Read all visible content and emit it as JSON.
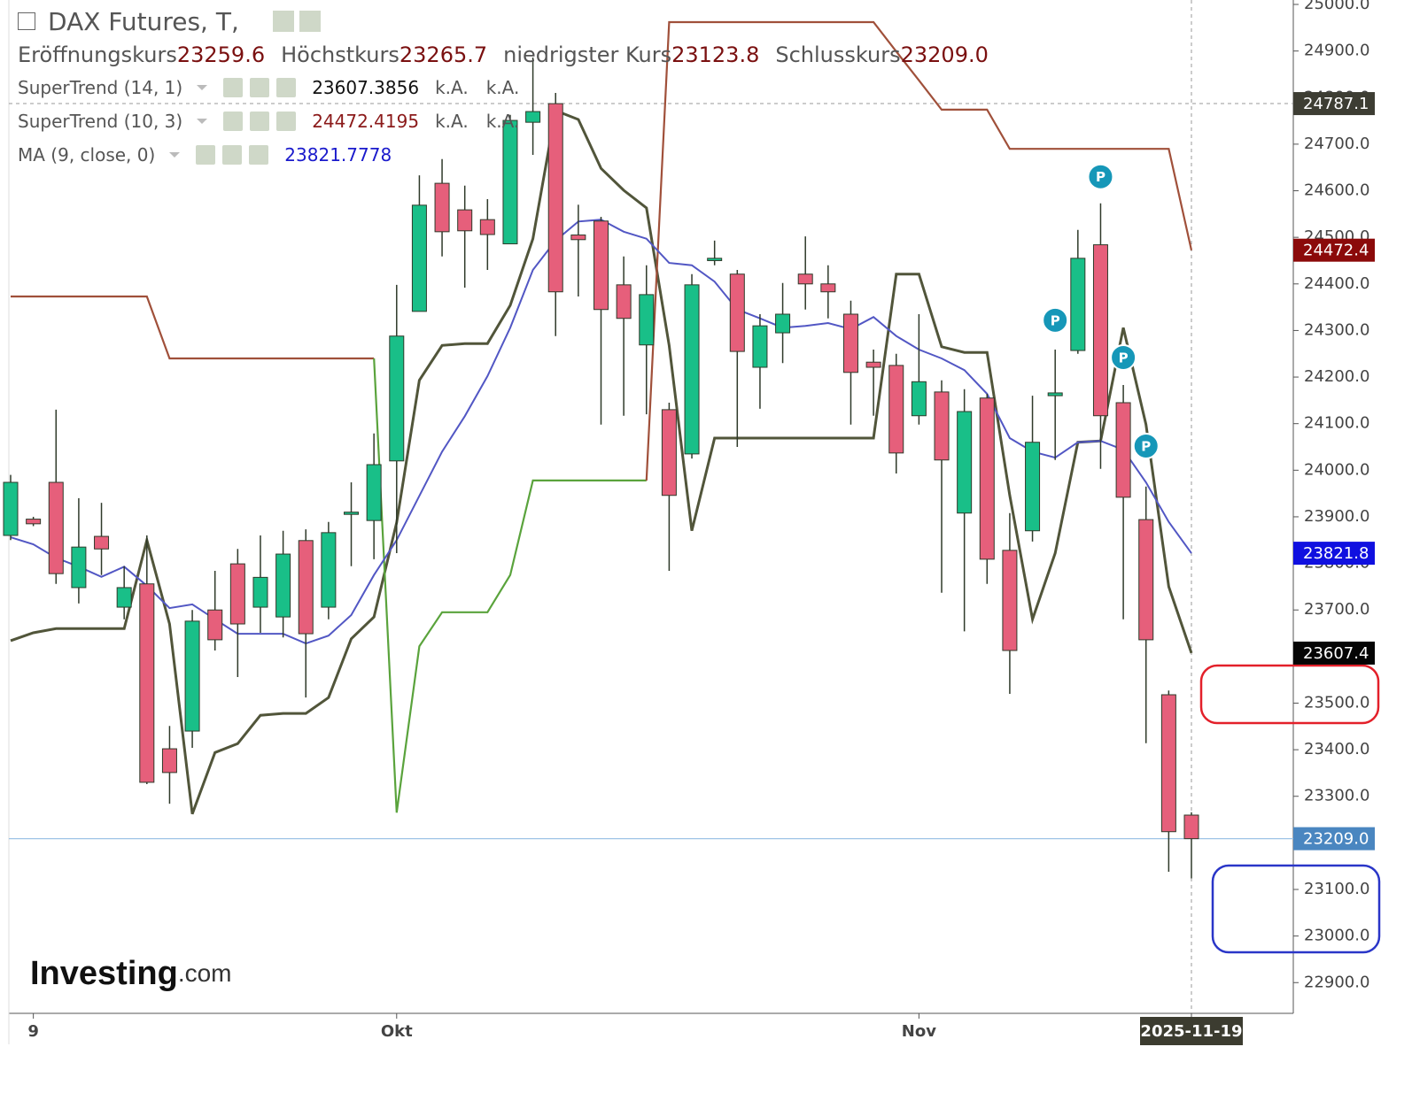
{
  "chart_data": {
    "type": "candlestick",
    "title": "DAX Futures, T,",
    "ohlc_legend": [
      {
        "label": "Eröffnungskurs",
        "value": "23259.6"
      },
      {
        "label": "Höchstkurs",
        "value": "23265.7"
      },
      {
        "label": "niedrigster Kurs",
        "value": "23123.8"
      },
      {
        "label": "Schlusskurs",
        "value": "23209.0"
      }
    ],
    "categories": [
      null,
      "9",
      null,
      null,
      null,
      null,
      null,
      null,
      null,
      null,
      null,
      null,
      null,
      null,
      null,
      null,
      null,
      "Okt",
      null,
      null,
      null,
      null,
      null,
      null,
      null,
      null,
      null,
      null,
      null,
      null,
      null,
      null,
      null,
      null,
      null,
      null,
      null,
      null,
      null,
      null,
      "Nov",
      null,
      null,
      null,
      null,
      null,
      null,
      null,
      null,
      null,
      null,
      null,
      "2025-11-19"
    ],
    "open": [
      23860,
      23895,
      23974,
      23748,
      23858,
      23706,
      23756,
      23402,
      23440,
      23700,
      23799,
      23706,
      23685,
      23849,
      23706,
      23907,
      23892,
      24020,
      24341,
      24616,
      24559,
      24538,
      24486,
      24747,
      24787,
      24505,
      24535,
      24398,
      24269,
      24130,
      24035,
      24450,
      24421,
      24221,
      24295,
      24421,
      24400,
      24335,
      24232,
      24225,
      24117,
      24168,
      23908,
      24155,
      23828,
      23870,
      24160,
      24257,
      24484,
      24145,
      23894,
      23518,
      23259.6
    ],
    "high": [
      23990,
      23900,
      24130,
      23940,
      23930,
      23794,
      23860,
      23451,
      23700,
      23784,
      23831,
      23860,
      23870,
      23873,
      23889,
      23974,
      24079,
      24398,
      24633,
      24668,
      24611,
      24582,
      24763,
      24886,
      24810,
      24570,
      24544,
      24459,
      24440,
      24145,
      24421,
      24493,
      24430,
      24335,
      24402,
      24502,
      24440,
      24364,
      24259,
      24250,
      24335,
      24193,
      24174,
      24164,
      23908,
      24160,
      24259,
      24516,
      24573,
      24183,
      23965,
      23527,
      23265.7
    ],
    "low": [
      23850,
      23880,
      23756,
      23714,
      23775,
      23680,
      23326,
      23284,
      23404,
      23613,
      23556,
      23651,
      23641,
      23512,
      23680,
      23794,
      23809,
      23822,
      24341,
      24459,
      24392,
      24430,
      24486,
      24677,
      24288,
      24373,
      24098,
      24117,
      24120,
      23784,
      24025,
      24440,
      24050,
      24132,
      24230,
      24345,
      24326,
      24098,
      24117,
      23993,
      24098,
      23737,
      23654,
      23756,
      23520,
      23847,
      24022,
      24250,
      24003,
      23680,
      23414,
      23138,
      23123.8
    ],
    "close": [
      23974,
      23885,
      23778,
      23835,
      23831,
      23748,
      23330,
      23351,
      23676,
      23636,
      23670,
      23770,
      23820,
      23649,
      23866,
      23910,
      24012,
      24288,
      24569,
      24512,
      24514,
      24506,
      24751,
      24770,
      24383,
      24495,
      24345,
      24326,
      24377,
      23946,
      24398,
      24455,
      24255,
      24310,
      24335,
      24400,
      24383,
      24210,
      24221,
      24037,
      24190,
      24022,
      24126,
      23809,
      23613,
      24060,
      24166,
      24455,
      24117,
      23942,
      23636,
      23224,
      23209
    ],
    "up_color": "#19bf88",
    "down_color": "#e65f7b",
    "series": [
      {
        "name": "SuperTrend (14, 1)",
        "color": "#51553a",
        "legend_value": "23607.3856",
        "legend_value_color": "#111111",
        "legend_extra": [
          "k.A.",
          "k.A."
        ],
        "values": [
          23634,
          23651,
          23660,
          23660,
          23660,
          23660,
          23850,
          23670,
          23262,
          23394,
          23413,
          23474,
          23478,
          23478,
          23512,
          23638,
          23685,
          23888,
          24193,
          24268,
          24272,
          24272,
          24354,
          24497,
          24772,
          24753,
          24648,
          24601,
          24563,
          24268,
          23870,
          24069,
          24069,
          24069,
          24069,
          24069,
          24069,
          24069,
          24069,
          24421,
          24421,
          24265,
          24253,
          24253,
          23946,
          23680,
          23822,
          24060,
          24063,
          24306,
          24098,
          23750,
          23607.4
        ]
      },
      {
        "name": "SuperTrend (10, 3)",
        "legend_value": "24472.4195",
        "legend_value_color": "#8b1a1a",
        "legend_extra": [
          "k.A.",
          "k.A."
        ],
        "values": [
          24373,
          24373,
          24373,
          24373,
          24373,
          24373,
          24373,
          24240,
          24240,
          24240,
          24240,
          24240,
          24240,
          24240,
          24240,
          24240,
          24240,
          23265,
          23622,
          23695,
          23695,
          23695,
          23775,
          23978,
          23978,
          23978,
          23978,
          23978,
          23978,
          24962,
          24962,
          24962,
          24962,
          24962,
          24962,
          24962,
          24962,
          24962,
          24962,
          24899,
          24837,
          24774,
          24774,
          24774,
          24690,
          24690,
          24690,
          24690,
          24690,
          24690,
          24690,
          24690,
          24472.4
        ],
        "colors": [
          "#a0503a",
          "#a0503a",
          "#a0503a",
          "#a0503a",
          "#a0503a",
          "#a0503a",
          "#a0503a",
          "#a0503a",
          "#a0503a",
          "#a0503a",
          "#a0503a",
          "#a0503a",
          "#a0503a",
          "#a0503a",
          "#a0503a",
          "#a0503a",
          "#a0503a",
          "#5aa33c",
          "#5aa33c",
          "#5aa33c",
          "#5aa33c",
          "#5aa33c",
          "#5aa33c",
          "#5aa33c",
          "#5aa33c",
          "#5aa33c",
          "#5aa33c",
          "#5aa33c",
          "#5aa33c",
          "#a0503a",
          "#a0503a",
          "#a0503a",
          "#a0503a",
          "#a0503a",
          "#a0503a",
          "#a0503a",
          "#a0503a",
          "#a0503a",
          "#a0503a",
          "#a0503a",
          "#a0503a",
          "#a0503a",
          "#a0503a",
          "#a0503a",
          "#a0503a",
          "#a0503a",
          "#a0503a",
          "#a0503a",
          "#a0503a",
          "#a0503a",
          "#a0503a",
          "#a0503a",
          "#a0503a"
        ]
      },
      {
        "name": "MA (9, close, 0)",
        "color": "#5257c4",
        "legend_value": "23821.7778",
        "legend_value_color": "#1a1acc",
        "values": [
          23856,
          23841,
          23812,
          23793,
          23771,
          23793,
          23752,
          23704,
          23712,
          23680,
          23649,
          23649,
          23649,
          23628,
          23645,
          23689,
          23775,
          23850,
          23945,
          24040,
          24116,
          24202,
          24306,
          24430,
          24493,
          24534,
          24538,
          24512,
          24497,
          24445,
          24440,
          24405,
          24345,
          24326,
          24306,
          24310,
          24316,
          24303,
          24329,
          24288,
          24259,
          24240,
          24215,
          24164,
          24069,
          24040,
          24027,
          24060,
          24063,
          24044,
          23974,
          23889,
          23821.8
        ]
      }
    ],
    "pivot_markers": [
      {
        "label": "P",
        "index": 48,
        "value": 24630
      },
      {
        "label": "P",
        "index": 46,
        "value": 24322
      },
      {
        "label": "P",
        "index": 49,
        "value": 24242
      },
      {
        "label": "P",
        "index": 50,
        "value": 24052
      }
    ],
    "price_tags": [
      {
        "value": 24787.1,
        "label": "24787.1",
        "color": "#3d3d33",
        "line": "dashed"
      },
      {
        "value": 24472.4,
        "label": "24472.4",
        "color": "#8b0a0a"
      },
      {
        "value": 23821.8,
        "label": "23821.8",
        "color": "#1010e0"
      },
      {
        "value": 23607.4,
        "label": "23607.4",
        "color": "#050505"
      },
      {
        "value": 23209,
        "label": "23209.0",
        "color": "#4a86c0",
        "line": "solid"
      }
    ],
    "ylim": [
      22834,
      25009.5
    ],
    "yticks": [
      {
        "value": 22900,
        "label": "22900.0"
      },
      {
        "value": 23000,
        "label": "23000.0"
      },
      {
        "value": 23100,
        "label": "23100.0"
      },
      {
        "value": 23200,
        "label": "23200.0"
      },
      {
        "value": 23300,
        "label": "23300.0"
      },
      {
        "value": 23400,
        "label": "23400.0"
      },
      {
        "value": 23500,
        "label": "23500.0"
      },
      {
        "value": 23600,
        "label": "23600.0"
      },
      {
        "value": 23700,
        "label": "23700.0"
      },
      {
        "value": 23800,
        "label": "23800.0"
      },
      {
        "value": 23900,
        "label": "23900.0"
      },
      {
        "value": 24000,
        "label": "24000.0"
      },
      {
        "value": 24100,
        "label": "24100.0"
      },
      {
        "value": 24200,
        "label": "24200.0"
      },
      {
        "value": 24300,
        "label": "24300.0"
      },
      {
        "value": 24400,
        "label": "24400.0"
      },
      {
        "value": 24500,
        "label": "24500.0"
      },
      {
        "value": 24600,
        "label": "24600.0"
      },
      {
        "value": 24700,
        "label": "24700.0"
      },
      {
        "value": 24800,
        "label": "24800.0"
      },
      {
        "value": 24900,
        "label": "24900.0"
      },
      {
        "value": 25000,
        "label": "25000.0"
      }
    ],
    "watermark": [
      "Investing",
      ".com"
    ]
  }
}
